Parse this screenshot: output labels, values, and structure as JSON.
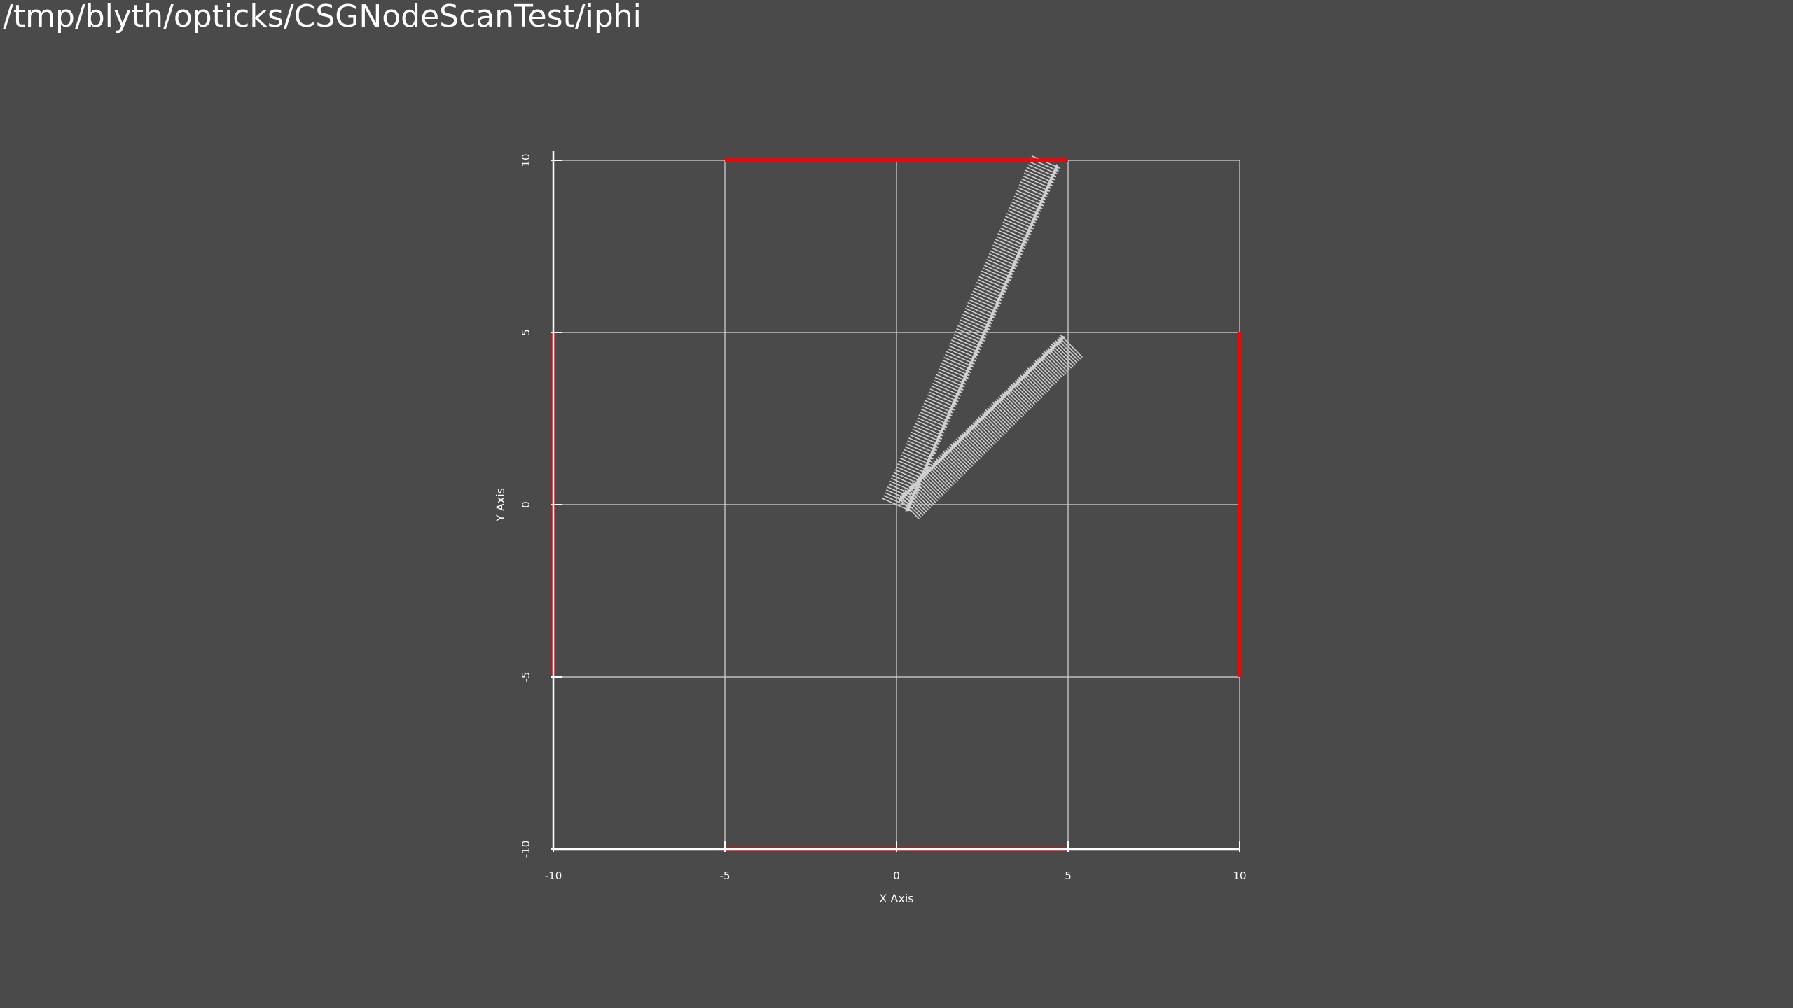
{
  "window": {
    "title": "/tmp/blyth/opticks/CSGNodeScanTest/iphi"
  },
  "colors": {
    "background": "#4a4a4a",
    "grid": "#d8d8d8",
    "axis": "#ffffff",
    "boundary": "#ff0000",
    "arrows": "#cfcfcf"
  },
  "chart_data": {
    "type": "quiver",
    "title": "",
    "xlabel": "X Axis",
    "ylabel": "Y Axis",
    "xlim": [
      -10,
      10
    ],
    "ylim": [
      -10,
      10
    ],
    "xticks": [
      -10,
      -5,
      0,
      5,
      10
    ],
    "yticks": [
      -10,
      -5,
      0,
      5,
      10
    ],
    "grid": true,
    "boundary_segments": [
      {
        "name": "top",
        "from": [
          -5,
          10
        ],
        "to": [
          5,
          10
        ]
      },
      {
        "name": "right",
        "from": [
          10,
          5
        ],
        "to": [
          10,
          -5
        ]
      },
      {
        "name": "bottom",
        "from": [
          -5,
          -10
        ],
        "to": [
          5,
          -10
        ]
      },
      {
        "name": "left",
        "from": [
          -10,
          5
        ],
        "to": [
          -10,
          -5
        ]
      }
    ],
    "arrow_bands": [
      {
        "name": "",
        "start": [
          0,
          0
        ],
        "end": [
          4.35,
          9.95
        ],
        "arrow_length": 0.9,
        "count": 120,
        "direction": "toward-origin-side"
      },
      {
        "name": "",
        "start": [
          0.35,
          -0.1
        ],
        "end": [
          5.1,
          4.6
        ],
        "arrow_length": 0.9,
        "count": 90,
        "direction": "away-from-origin-side"
      }
    ]
  }
}
